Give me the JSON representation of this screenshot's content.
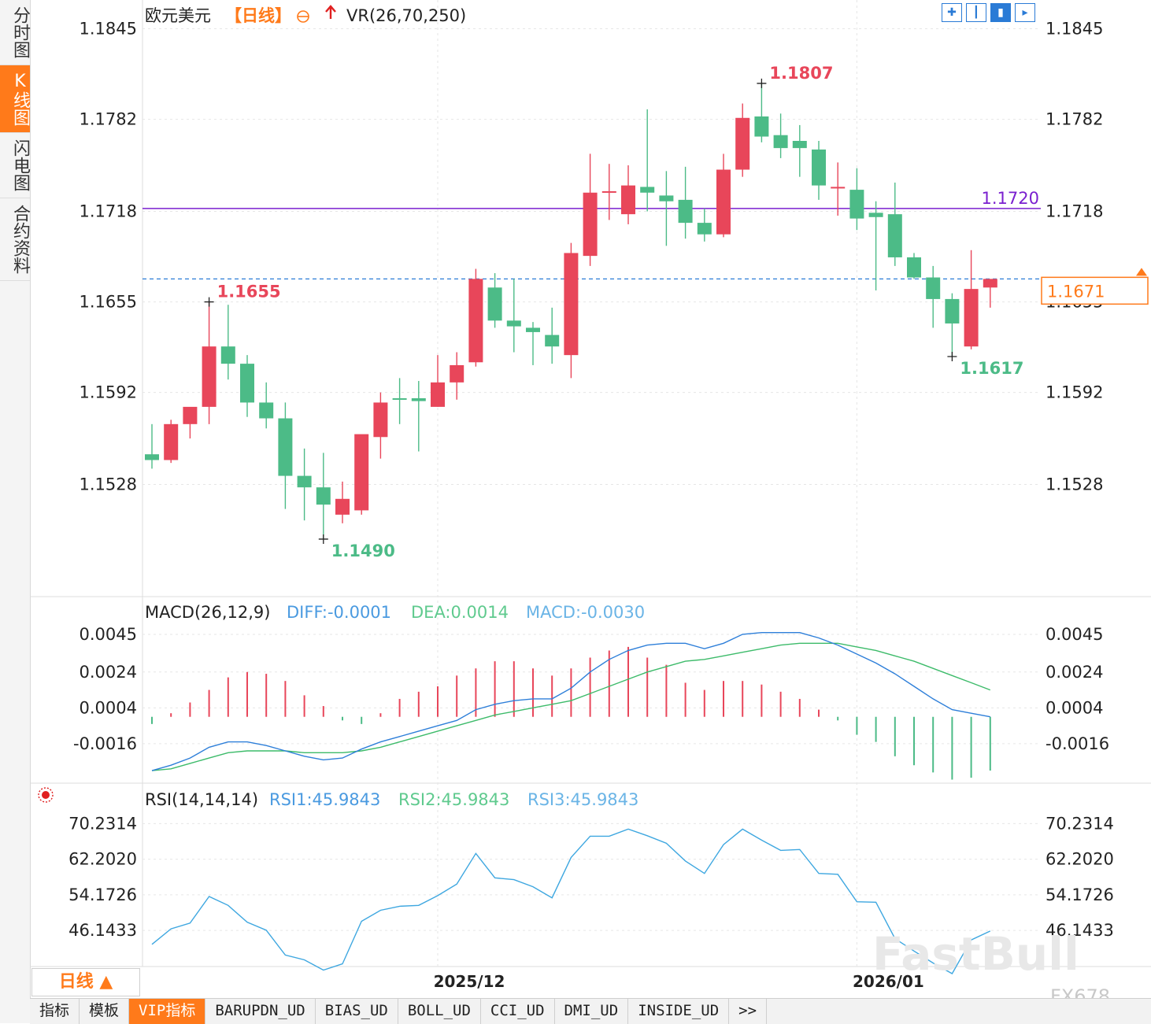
{
  "sidebar": {
    "items": [
      "分时图",
      "K线图",
      "闪电图",
      "合约资料"
    ],
    "active": 1
  },
  "header": {
    "symbol": "欧元美元",
    "period_tag": "【日线】",
    "overlay_indicator": "VR(26,70,250)"
  },
  "toolbar": {
    "icons": [
      "grid-icon",
      "bar-chart-icon",
      "candle-chart-icon",
      "expand-icon"
    ]
  },
  "macd_header": {
    "title": "MACD(26,12,9)",
    "diff": "DIFF:-0.0001",
    "dea": "DEA:0.0014",
    "macd": "MACD:-0.0030"
  },
  "rsi_header": {
    "title": "RSI(14,14,14)",
    "rsi1": "RSI1:45.9843",
    "rsi2": "RSI2:45.9843",
    "rsi3": "RSI3:45.9843"
  },
  "period_box": "日线 ▲",
  "bottom_tabs": [
    "指标",
    "模板",
    "VIP指标",
    "BARUPDN_UD",
    "BIAS_UD",
    "BOLL_UD",
    "CCI_UD",
    "DMI_UD",
    "INSIDE_UD",
    ">>"
  ],
  "watermark": {
    "brand": "FastBull",
    "code": "FX678"
  },
  "colors": {
    "up": "#e8465a",
    "down": "#4cbb87",
    "purple_line": "#7a1fcf",
    "last_price": "#ff7a1a",
    "diff": "#2e7fd9",
    "dea": "#3dbb6a",
    "grid": "#e6e6e6"
  },
  "chart_data": [
    {
      "type": "candlestick",
      "title": "欧元美元【日线】",
      "yticks": [
        "1.1845",
        "1.1782",
        "1.1718",
        "1.1655",
        "1.1592",
        "1.1528"
      ],
      "ylim": [
        1.145,
        1.1865
      ],
      "xlabels": [
        {
          "index": 15,
          "label": "2025/12"
        },
        {
          "index": 37,
          "label": "2026/01"
        }
      ],
      "horizontal_line": {
        "value": 1.172,
        "label": "1.1720"
      },
      "last_price": {
        "value": 1.1671,
        "label": "1.1671"
      },
      "annotations": [
        {
          "index": 3,
          "value": 1.1655,
          "label": "1.1655",
          "kind": "high"
        },
        {
          "index": 9,
          "value": 1.149,
          "label": "1.1490",
          "kind": "low"
        },
        {
          "index": 32,
          "value": 1.1807,
          "label": "1.1807",
          "kind": "high"
        },
        {
          "index": 42,
          "value": 1.1617,
          "label": "1.1617",
          "kind": "low"
        }
      ],
      "candles": [
        {
          "o": 1.1549,
          "h": 1.157,
          "l": 1.1539,
          "c": 1.1545
        },
        {
          "o": 1.1545,
          "h": 1.1573,
          "l": 1.1543,
          "c": 1.157
        },
        {
          "o": 1.157,
          "h": 1.1581,
          "l": 1.156,
          "c": 1.1582
        },
        {
          "o": 1.1582,
          "h": 1.1655,
          "l": 1.157,
          "c": 1.1624
        },
        {
          "o": 1.1624,
          "h": 1.1653,
          "l": 1.1601,
          "c": 1.1612
        },
        {
          "o": 1.1612,
          "h": 1.1618,
          "l": 1.1575,
          "c": 1.1585
        },
        {
          "o": 1.1585,
          "h": 1.1599,
          "l": 1.1567,
          "c": 1.1574
        },
        {
          "o": 1.1574,
          "h": 1.1585,
          "l": 1.1511,
          "c": 1.1534
        },
        {
          "o": 1.1534,
          "h": 1.1553,
          "l": 1.1503,
          "c": 1.1526
        },
        {
          "o": 1.1526,
          "h": 1.155,
          "l": 1.149,
          "c": 1.1514
        },
        {
          "o": 1.1507,
          "h": 1.153,
          "l": 1.1501,
          "c": 1.1518
        },
        {
          "o": 1.151,
          "h": 1.156,
          "l": 1.1507,
          "c": 1.1563
        },
        {
          "o": 1.1561,
          "h": 1.1592,
          "l": 1.1546,
          "c": 1.1585
        },
        {
          "o": 1.1588,
          "h": 1.1602,
          "l": 1.157,
          "c": 1.1587
        },
        {
          "o": 1.1588,
          "h": 1.16,
          "l": 1.1551,
          "c": 1.1586
        },
        {
          "o": 1.1582,
          "h": 1.1618,
          "l": 1.1582,
          "c": 1.1599
        },
        {
          "o": 1.1599,
          "h": 1.162,
          "l": 1.1587,
          "c": 1.1611
        },
        {
          "o": 1.1613,
          "h": 1.1678,
          "l": 1.161,
          "c": 1.1671
        },
        {
          "o": 1.1665,
          "h": 1.1675,
          "l": 1.1637,
          "c": 1.1642
        },
        {
          "o": 1.1642,
          "h": 1.1671,
          "l": 1.162,
          "c": 1.1638
        },
        {
          "o": 1.1637,
          "h": 1.1641,
          "l": 1.1611,
          "c": 1.1634
        },
        {
          "o": 1.1632,
          "h": 1.1651,
          "l": 1.1612,
          "c": 1.1624
        },
        {
          "o": 1.1618,
          "h": 1.1696,
          "l": 1.1602,
          "c": 1.1689
        },
        {
          "o": 1.1687,
          "h": 1.1758,
          "l": 1.168,
          "c": 1.1731
        },
        {
          "o": 1.1731,
          "h": 1.1751,
          "l": 1.1712,
          "c": 1.1732
        },
        {
          "o": 1.1716,
          "h": 1.175,
          "l": 1.1709,
          "c": 1.1736
        },
        {
          "o": 1.1735,
          "h": 1.1789,
          "l": 1.1718,
          "c": 1.1731
        },
        {
          "o": 1.1729,
          "h": 1.1746,
          "l": 1.1694,
          "c": 1.1725
        },
        {
          "o": 1.1726,
          "h": 1.1749,
          "l": 1.1699,
          "c": 1.171
        },
        {
          "o": 1.171,
          "h": 1.172,
          "l": 1.1697,
          "c": 1.1702
        },
        {
          "o": 1.1702,
          "h": 1.1758,
          "l": 1.17,
          "c": 1.1747
        },
        {
          "o": 1.1747,
          "h": 1.1793,
          "l": 1.1742,
          "c": 1.1783
        },
        {
          "o": 1.1784,
          "h": 1.1807,
          "l": 1.1766,
          "c": 1.177
        },
        {
          "o": 1.1771,
          "h": 1.1786,
          "l": 1.1755,
          "c": 1.1762
        },
        {
          "o": 1.1767,
          "h": 1.1778,
          "l": 1.1742,
          "c": 1.1762
        },
        {
          "o": 1.1761,
          "h": 1.1767,
          "l": 1.1726,
          "c": 1.1736
        },
        {
          "o": 1.1735,
          "h": 1.1752,
          "l": 1.1715,
          "c": 1.1735
        },
        {
          "o": 1.1733,
          "h": 1.1748,
          "l": 1.1705,
          "c": 1.1713
        },
        {
          "o": 1.1717,
          "h": 1.1725,
          "l": 1.1663,
          "c": 1.1714
        },
        {
          "o": 1.1716,
          "h": 1.1738,
          "l": 1.168,
          "c": 1.1686
        },
        {
          "o": 1.1686,
          "h": 1.1689,
          "l": 1.1671,
          "c": 1.1672
        },
        {
          "o": 1.1672,
          "h": 1.168,
          "l": 1.1637,
          "c": 1.1657
        },
        {
          "o": 1.1657,
          "h": 1.1661,
          "l": 1.1617,
          "c": 1.164
        },
        {
          "o": 1.1624,
          "h": 1.1691,
          "l": 1.1622,
          "c": 1.1664
        },
        {
          "o": 1.1665,
          "h": 1.167,
          "l": 1.1651,
          "c": 1.1671
        }
      ]
    },
    {
      "type": "macd",
      "yticks": [
        "0.0045",
        "0.0024",
        "0.0004",
        "-0.0016"
      ],
      "ylim": [
        -0.0038,
        0.0052
      ],
      "hist": [
        -0.0004,
        0.0002,
        0.0008,
        0.0015,
        0.0022,
        0.0025,
        0.0024,
        0.002,
        0.0012,
        0.0006,
        -0.0002,
        -0.0004,
        0.0002,
        0.001,
        0.0014,
        0.0017,
        0.0023,
        0.0027,
        0.0031,
        0.0031,
        0.0027,
        0.0023,
        0.0027,
        0.0033,
        0.0037,
        0.0039,
        0.0033,
        0.0029,
        0.0019,
        0.0015,
        0.002,
        0.002,
        0.0018,
        0.0014,
        0.001,
        0.0004,
        -0.0002,
        -0.001,
        -0.0014,
        -0.0022,
        -0.0027,
        -0.0031,
        -0.0035,
        -0.0034,
        -0.003
      ],
      "diff": [
        -0.0031,
        -0.0028,
        -0.0024,
        -0.0018,
        -0.0015,
        -0.0015,
        -0.0017,
        -0.002,
        -0.0023,
        -0.0025,
        -0.0024,
        -0.0019,
        -0.0015,
        -0.0012,
        -0.0009,
        -0.0006,
        -0.0003,
        0.0003,
        0.0006,
        0.0008,
        0.0009,
        0.0009,
        0.0015,
        0.0024,
        0.0031,
        0.0036,
        0.0039,
        0.004,
        0.004,
        0.0037,
        0.004,
        0.0045,
        0.0046,
        0.0046,
        0.0046,
        0.0043,
        0.0039,
        0.0034,
        0.0029,
        0.0023,
        0.0016,
        0.0009,
        0.0003,
        0.0001,
        -0.0001
      ],
      "dea": [
        -0.0031,
        -0.003,
        -0.0027,
        -0.0024,
        -0.0021,
        -0.002,
        -0.002,
        -0.002,
        -0.0021,
        -0.0021,
        -0.0021,
        -0.002,
        -0.0018,
        -0.0015,
        -0.0012,
        -0.0009,
        -0.0006,
        -0.0003,
        0.0,
        0.0002,
        0.0004,
        0.0006,
        0.0008,
        0.0012,
        0.0016,
        0.002,
        0.0024,
        0.0027,
        0.003,
        0.0031,
        0.0033,
        0.0035,
        0.0037,
        0.0039,
        0.004,
        0.004,
        0.004,
        0.0038,
        0.0036,
        0.0033,
        0.003,
        0.0026,
        0.0022,
        0.0018,
        0.0014
      ]
    },
    {
      "type": "line",
      "title": "RSI(14,14,14)",
      "yticks": [
        "70.2314",
        "62.2020",
        "54.1726",
        "46.1433"
      ],
      "ylim": [
        38.0,
        73.5
      ],
      "rsi": [
        43.0,
        46.5,
        47.8,
        53.8,
        51.8,
        48.0,
        46.2,
        40.6,
        39.5,
        37.2,
        38.6,
        48.2,
        50.7,
        51.6,
        51.8,
        54.0,
        56.6,
        63.5,
        58.0,
        57.6,
        56.0,
        53.5,
        62.6,
        67.4,
        67.4,
        69.0,
        67.5,
        65.8,
        61.8,
        59.0,
        65.5,
        69.0,
        66.5,
        64.2,
        64.4,
        59.0,
        58.8,
        52.6,
        52.5,
        44.3,
        41.5,
        38.8,
        36.4,
        44.0,
        46.0
      ]
    }
  ]
}
